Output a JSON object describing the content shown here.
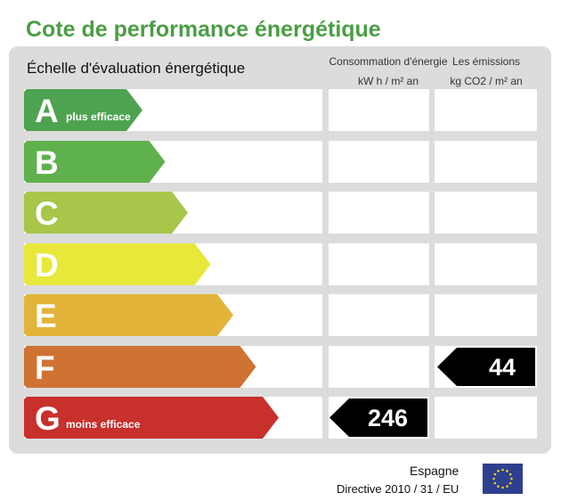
{
  "title": "Cote de performance énergétique",
  "scale_title": "Échelle d'évaluation énergétique",
  "columns": {
    "consumption": {
      "line1": "Consommation d'énergie",
      "line2": "kW h / m² an"
    },
    "emissions": {
      "line1": "Les émissions",
      "line2": "kg CO2 / m² an"
    }
  },
  "ratings": [
    {
      "letter": "A",
      "note": "plus efficace",
      "color": "#4ea350"
    },
    {
      "letter": "B",
      "note": "",
      "color": "#5fb14d"
    },
    {
      "letter": "C",
      "note": "",
      "color": "#a7c64a"
    },
    {
      "letter": "D",
      "note": "",
      "color": "#e8e83b"
    },
    {
      "letter": "E",
      "note": "",
      "color": "#e2b43a"
    },
    {
      "letter": "F",
      "note": "",
      "color": "#cf7332"
    },
    {
      "letter": "G",
      "note": "moins efficace",
      "color": "#c8302c"
    }
  ],
  "consumption_marker": {
    "value": "246",
    "rating": "G"
  },
  "emissions_marker": {
    "value": "44",
    "rating": "F"
  },
  "footer": {
    "country": "Espagne",
    "directive": "Directive 2010 / 31 / EU"
  },
  "colors": {
    "title": "#4a9e45",
    "panel": "#dcdcdc",
    "marker": "#000000",
    "eu_blue": "#2f3f8f",
    "eu_star": "#f3d21b"
  }
}
